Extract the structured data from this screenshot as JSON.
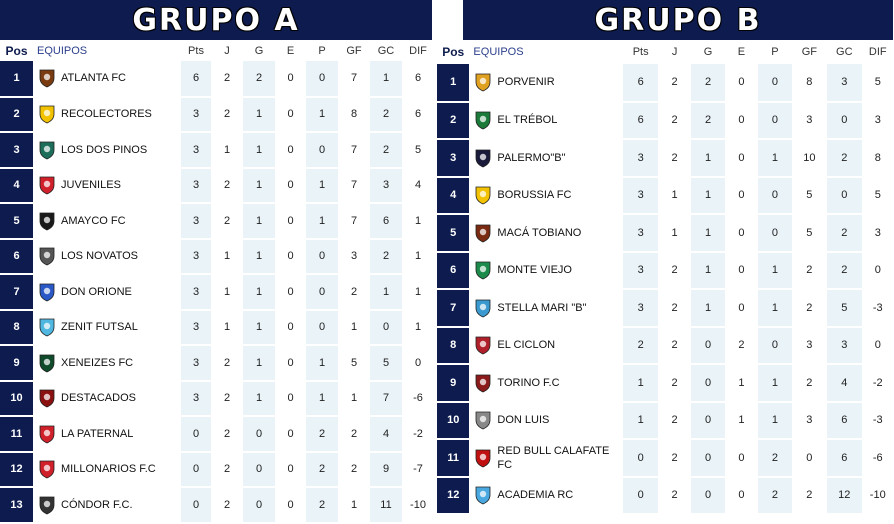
{
  "columns": [
    "Pos",
    "EQUIPOS",
    "Pts",
    "J",
    "G",
    "E",
    "P",
    "GF",
    "GC",
    "DIF"
  ],
  "group_a": {
    "title": "GRUPO A",
    "rows": [
      {
        "pos": "1",
        "team": "ATLANTA FC",
        "pts": "6",
        "j": "2",
        "g": "2",
        "e": "0",
        "p": "0",
        "gf": "7",
        "gc": "1",
        "dif": "6",
        "logo_color": "#7a3b10",
        "logo": "crest-icon"
      },
      {
        "pos": "2",
        "team": "RECOLECTORES",
        "pts": "3",
        "j": "2",
        "g": "1",
        "e": "0",
        "p": "1",
        "gf": "8",
        "gc": "2",
        "dif": "6",
        "logo_color": "#f2c200",
        "logo": "crest-icon"
      },
      {
        "pos": "3",
        "team": "LOS DOS PINOS",
        "pts": "3",
        "j": "1",
        "g": "1",
        "e": "0",
        "p": "0",
        "gf": "7",
        "gc": "2",
        "dif": "5",
        "logo_color": "#1c6e5a",
        "logo": "crest-icon"
      },
      {
        "pos": "4",
        "team": "JUVENILES",
        "pts": "3",
        "j": "2",
        "g": "1",
        "e": "0",
        "p": "1",
        "gf": "7",
        "gc": "3",
        "dif": "4",
        "logo_color": "#d0202a",
        "logo": "crest-icon"
      },
      {
        "pos": "5",
        "team": "AMAYCO FC",
        "pts": "3",
        "j": "2",
        "g": "1",
        "e": "0",
        "p": "1",
        "gf": "7",
        "gc": "6",
        "dif": "1",
        "logo_color": "#1a1a1a",
        "logo": "crest-icon"
      },
      {
        "pos": "6",
        "team": "LOS NOVATOS",
        "pts": "3",
        "j": "1",
        "g": "1",
        "e": "0",
        "p": "0",
        "gf": "3",
        "gc": "2",
        "dif": "1",
        "logo_color": "#555555",
        "logo": "crest-icon"
      },
      {
        "pos": "7",
        "team": "DON ORIONE",
        "pts": "3",
        "j": "1",
        "g": "1",
        "e": "0",
        "p": "0",
        "gf": "2",
        "gc": "1",
        "dif": "1",
        "logo_color": "#2a59c7",
        "logo": "crest-icon"
      },
      {
        "pos": "8",
        "team": "ZENIT FUTSAL",
        "pts": "3",
        "j": "1",
        "g": "1",
        "e": "0",
        "p": "0",
        "gf": "1",
        "gc": "0",
        "dif": "1",
        "logo_color": "#4fb7e0",
        "logo": "crest-icon"
      },
      {
        "pos": "9",
        "team": "XENEIZES FC",
        "pts": "3",
        "j": "2",
        "g": "1",
        "e": "0",
        "p": "1",
        "gf": "5",
        "gc": "5",
        "dif": "0",
        "logo_color": "#0f4a2a",
        "logo": "crest-icon"
      },
      {
        "pos": "10",
        "team": "DESTACADOS",
        "pts": "3",
        "j": "2",
        "g": "1",
        "e": "0",
        "p": "1",
        "gf": "1",
        "gc": "7",
        "dif": "-6",
        "logo_color": "#8b1010",
        "logo": "crest-icon"
      },
      {
        "pos": "11",
        "team": "LA PATERNAL",
        "pts": "0",
        "j": "2",
        "g": "0",
        "e": "0",
        "p": "2",
        "gf": "2",
        "gc": "4",
        "dif": "-2",
        "logo_color": "#d0202a",
        "logo": "crest-icon"
      },
      {
        "pos": "12",
        "team": "MILLONARIOS F.C",
        "pts": "0",
        "j": "2",
        "g": "0",
        "e": "0",
        "p": "2",
        "gf": "2",
        "gc": "9",
        "dif": "-7",
        "logo_color": "#d0202a",
        "logo": "crest-icon"
      },
      {
        "pos": "13",
        "team": "CÓNDOR F.C.",
        "pts": "0",
        "j": "2",
        "g": "0",
        "e": "0",
        "p": "2",
        "gf": "1",
        "gc": "11",
        "dif": "-10",
        "logo_color": "#333333",
        "logo": "crest-icon"
      }
    ]
  },
  "group_b": {
    "title": "GRUPO B",
    "rows": [
      {
        "pos": "1",
        "team": "PORVENIR",
        "pts": "6",
        "j": "2",
        "g": "2",
        "e": "0",
        "p": "0",
        "gf": "8",
        "gc": "3",
        "dif": "5",
        "logo_color": "#e0a020",
        "logo": "crest-icon"
      },
      {
        "pos": "2",
        "team": "EL TRÉBOL",
        "pts": "6",
        "j": "2",
        "g": "2",
        "e": "0",
        "p": "0",
        "gf": "3",
        "gc": "0",
        "dif": "3",
        "logo_color": "#1b7a3a",
        "logo": "crest-icon"
      },
      {
        "pos": "3",
        "team": "PALERMO\"B\"",
        "pts": "3",
        "j": "2",
        "g": "1",
        "e": "0",
        "p": "1",
        "gf": "10",
        "gc": "2",
        "dif": "8",
        "logo_color": "#1a1a3a",
        "logo": "crest-icon"
      },
      {
        "pos": "4",
        "team": "BORUSSIA FC",
        "pts": "3",
        "j": "1",
        "g": "1",
        "e": "0",
        "p": "0",
        "gf": "5",
        "gc": "0",
        "dif": "5",
        "logo_color": "#f2c200",
        "logo": "crest-icon"
      },
      {
        "pos": "5",
        "team": "MACÁ TOBIANO",
        "pts": "3",
        "j": "1",
        "g": "1",
        "e": "0",
        "p": "0",
        "gf": "5",
        "gc": "2",
        "dif": "3",
        "logo_color": "#7a2a10",
        "logo": "crest-icon"
      },
      {
        "pos": "6",
        "team": "MONTE VIEJO",
        "pts": "3",
        "j": "2",
        "g": "1",
        "e": "0",
        "p": "1",
        "gf": "2",
        "gc": "2",
        "dif": "0",
        "logo_color": "#1b8a4a",
        "logo": "crest-icon"
      },
      {
        "pos": "7",
        "team": "STELLA MARI \"B\"",
        "pts": "3",
        "j": "2",
        "g": "1",
        "e": "0",
        "p": "1",
        "gf": "2",
        "gc": "5",
        "dif": "-3",
        "logo_color": "#3a9ad0",
        "logo": "crest-icon"
      },
      {
        "pos": "8",
        "team": "EL CICLON",
        "pts": "2",
        "j": "2",
        "g": "0",
        "e": "2",
        "p": "0",
        "gf": "3",
        "gc": "3",
        "dif": "0",
        "logo_color": "#b0202a",
        "logo": "crest-icon"
      },
      {
        "pos": "9",
        "team": "TORINO F.C",
        "pts": "1",
        "j": "2",
        "g": "0",
        "e": "1",
        "p": "1",
        "gf": "2",
        "gc": "4",
        "dif": "-2",
        "logo_color": "#8b1a1a",
        "logo": "crest-icon"
      },
      {
        "pos": "10",
        "team": "DON LUIS",
        "pts": "1",
        "j": "2",
        "g": "0",
        "e": "1",
        "p": "1",
        "gf": "3",
        "gc": "6",
        "dif": "-3",
        "logo_color": "#888888",
        "logo": "crest-icon"
      },
      {
        "pos": "11",
        "team": "RED BULL CALAFATE FC",
        "pts": "0",
        "j": "2",
        "g": "0",
        "e": "0",
        "p": "2",
        "gf": "0",
        "gc": "6",
        "dif": "-6",
        "logo_color": "#c01010",
        "logo": "crest-icon"
      },
      {
        "pos": "12",
        "team": "ACADEMIA RC",
        "pts": "0",
        "j": "2",
        "g": "0",
        "e": "0",
        "p": "2",
        "gf": "2",
        "gc": "12",
        "dif": "-10",
        "logo_color": "#4aa8e0",
        "logo": "crest-icon"
      }
    ]
  }
}
